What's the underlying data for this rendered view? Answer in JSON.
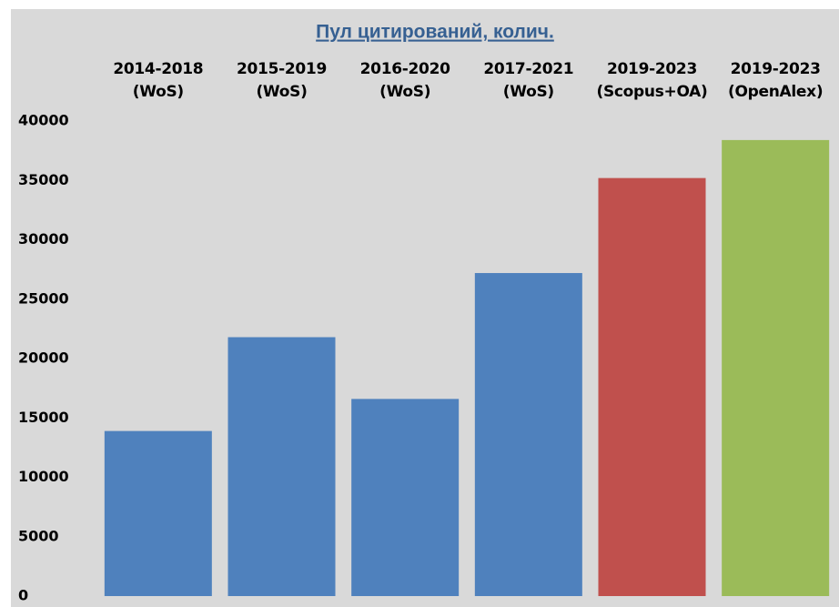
{
  "chart_data": {
    "type": "bar",
    "title": "Пул цитирований, колич.",
    "categories": [
      "2014-2018 (WoS)",
      "2015-2019 (WoS)",
      "2016-2020 (WoS)",
      "2017-2021 (WoS)",
      "2019-2023 (Scopus+OA)",
      "2019-2023 (OpenAlex)"
    ],
    "values": [
      13900,
      21800,
      16600,
      27200,
      35200,
      38400
    ],
    "colors": [
      "#4f81bd",
      "#4f81bd",
      "#4f81bd",
      "#4f81bd",
      "#c0504d",
      "#9bbb59"
    ],
    "ylim": [
      0,
      40000
    ],
    "yticks": [
      0,
      5000,
      10000,
      15000,
      20000,
      25000,
      30000,
      35000,
      40000
    ],
    "grid": false
  }
}
